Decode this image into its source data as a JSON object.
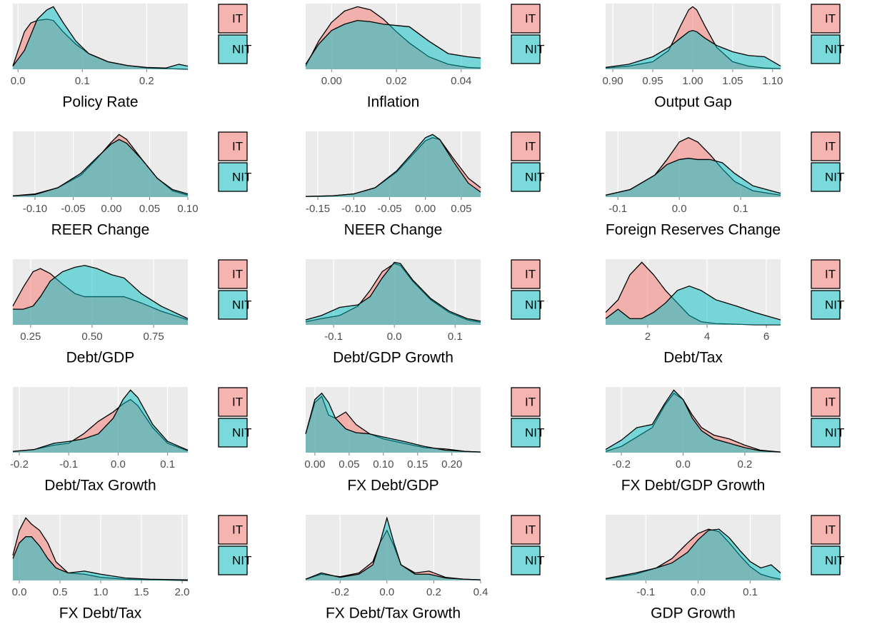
{
  "chart_data": [
    {
      "type": "area",
      "xlabel": "Policy Rate",
      "xlim": [
        -0.008,
        0.264
      ],
      "xticks": [
        {
          "value": 0,
          "label": "0.0"
        },
        0.1,
        0.2
      ],
      "ylim": [
        0,
        1.05
      ],
      "grid": true,
      "x": [
        -0.008,
        0.01,
        0.02,
        0.03,
        0.045,
        0.055,
        0.07,
        0.09,
        0.11,
        0.14,
        0.17,
        0.2,
        0.23,
        0.25,
        0.264
      ],
      "series": [
        {
          "name": "IT",
          "color": "#F8766D",
          "values": [
            0.05,
            0.6,
            0.74,
            0.78,
            0.8,
            0.78,
            0.6,
            0.4,
            0.25,
            0.12,
            0.06,
            0.02,
            0.01,
            0.005,
            0.0
          ]
        },
        {
          "name": "NIT",
          "color": "#00BFC4",
          "values": [
            0.05,
            0.3,
            0.55,
            0.8,
            0.95,
            1.0,
            0.75,
            0.45,
            0.25,
            0.12,
            0.06,
            0.03,
            0.02,
            0.08,
            0.05
          ]
        }
      ]
    },
    {
      "type": "area",
      "xlabel": "Inflation",
      "xlim": [
        -0.008,
        0.046
      ],
      "xticks": [
        {
          "value": 0,
          "label": "0.00"
        },
        0.02,
        0.04
      ],
      "ylim": [
        0,
        1.05
      ],
      "grid": true,
      "x": [
        -0.008,
        -0.004,
        0,
        0.004,
        0.008,
        0.012,
        0.016,
        0.02,
        0.024,
        0.03,
        0.036,
        0.042,
        0.046
      ],
      "series": [
        {
          "name": "IT",
          "color": "#F8766D",
          "values": [
            0.05,
            0.45,
            0.75,
            0.93,
            1.0,
            0.95,
            0.8,
            0.6,
            0.42,
            0.2,
            0.08,
            0.03,
            0.02
          ]
        },
        {
          "name": "NIT",
          "color": "#00BFC4",
          "values": [
            0.08,
            0.4,
            0.62,
            0.72,
            0.78,
            0.76,
            0.72,
            0.7,
            0.68,
            0.45,
            0.25,
            0.2,
            0.18
          ]
        }
      ]
    },
    {
      "type": "area",
      "xlabel": "Output Gap",
      "xlim": [
        0.891,
        1.11
      ],
      "xticks": [
        {
          "value": 0.9,
          "label": "0.90"
        },
        0.95,
        {
          "value": 1,
          "label": "1.00"
        },
        1.05,
        {
          "value": 1.1,
          "label": "1.10"
        }
      ],
      "ylim": [
        0,
        1.05
      ],
      "grid": true,
      "x": [
        0.891,
        0.92,
        0.95,
        0.97,
        0.985,
        0.995,
        1.0,
        1.005,
        1.015,
        1.03,
        1.05,
        1.07,
        1.09,
        1.11
      ],
      "series": [
        {
          "name": "IT",
          "color": "#F8766D",
          "values": [
            0.02,
            0.05,
            0.12,
            0.3,
            0.7,
            0.95,
            1.0,
            0.95,
            0.7,
            0.35,
            0.12,
            0.05,
            0.02,
            0.01
          ]
        },
        {
          "name": "NIT",
          "color": "#00BFC4",
          "values": [
            0.03,
            0.08,
            0.2,
            0.35,
            0.5,
            0.6,
            0.62,
            0.6,
            0.5,
            0.38,
            0.28,
            0.22,
            0.2,
            0.05
          ]
        }
      ]
    },
    {
      "type": "area",
      "xlabel": "REER Change",
      "xlim": [
        -0.129,
        0.1
      ],
      "xticks": [
        {
          "value": -0.1,
          "label": "-0.10"
        },
        -0.05,
        {
          "value": 0,
          "label": "0.00"
        },
        0.05,
        {
          "value": 0.1,
          "label": "0.10"
        }
      ],
      "ylim": [
        0,
        1.05
      ],
      "grid": true,
      "x": [
        -0.129,
        -0.1,
        -0.07,
        -0.04,
        -0.02,
        0,
        0.01,
        0.02,
        0.04,
        0.06,
        0.08,
        0.1
      ],
      "series": [
        {
          "name": "IT",
          "color": "#F8766D",
          "values": [
            0.02,
            0.05,
            0.15,
            0.35,
            0.6,
            0.88,
            1.0,
            0.92,
            0.6,
            0.3,
            0.1,
            0.03
          ]
        },
        {
          "name": "NIT",
          "color": "#00BFC4",
          "values": [
            0.02,
            0.04,
            0.15,
            0.38,
            0.62,
            0.85,
            0.92,
            0.86,
            0.6,
            0.3,
            0.12,
            0.05
          ]
        }
      ]
    },
    {
      "type": "area",
      "xlabel": "NEER Change",
      "xlim": [
        -0.167,
        0.077
      ],
      "xticks": [
        -0.15,
        {
          "value": -0.1,
          "label": "-0.10"
        },
        -0.05,
        {
          "value": 0,
          "label": "0.00"
        },
        0.05
      ],
      "ylim": [
        0,
        1.05
      ],
      "grid": true,
      "x": [
        -0.167,
        -0.13,
        -0.1,
        -0.07,
        -0.04,
        -0.02,
        0,
        0.01,
        0.02,
        0.04,
        0.06,
        0.077
      ],
      "series": [
        {
          "name": "IT",
          "color": "#F8766D",
          "values": [
            0.01,
            0.02,
            0.05,
            0.15,
            0.4,
            0.65,
            0.9,
            0.95,
            0.92,
            0.6,
            0.3,
            0.15
          ]
        },
        {
          "name": "NIT",
          "color": "#00BFC4",
          "values": [
            0.01,
            0.02,
            0.05,
            0.15,
            0.42,
            0.68,
            0.95,
            1.0,
            0.92,
            0.55,
            0.22,
            0.08
          ]
        }
      ]
    },
    {
      "type": "area",
      "xlabel": "Foreign Reserves Change",
      "xlim": [
        -0.12,
        0.165
      ],
      "xticks": [
        -0.1,
        {
          "value": 0,
          "label": "0.0"
        },
        0.1
      ],
      "ylim": [
        0,
        1.05
      ],
      "grid": true,
      "x": [
        -0.12,
        -0.08,
        -0.04,
        -0.02,
        0,
        0.015,
        0.03,
        0.05,
        0.07,
        0.09,
        0.12,
        0.165
      ],
      "series": [
        {
          "name": "IT",
          "color": "#F8766D",
          "values": [
            0.03,
            0.12,
            0.35,
            0.6,
            0.88,
            0.95,
            0.88,
            0.68,
            0.45,
            0.25,
            0.1,
            0.03
          ]
        },
        {
          "name": "NIT",
          "color": "#00BFC4",
          "values": [
            0.03,
            0.12,
            0.35,
            0.52,
            0.6,
            0.62,
            0.6,
            0.6,
            0.55,
            0.38,
            0.18,
            0.06
          ]
        }
      ]
    },
    {
      "type": "area",
      "xlabel": "Debt/GDP",
      "xlim": [
        0.178,
        0.889
      ],
      "xticks": [
        0.25,
        {
          "value": 0.5,
          "label": "0.50"
        },
        0.75
      ],
      "ylim": [
        0,
        1.05
      ],
      "grid": true,
      "x": [
        0.178,
        0.22,
        0.26,
        0.29,
        0.33,
        0.38,
        0.43,
        0.47,
        0.52,
        0.58,
        0.63,
        0.7,
        0.78,
        0.889
      ],
      "series": [
        {
          "name": "IT",
          "color": "#F8766D",
          "values": [
            0.3,
            0.6,
            0.85,
            0.9,
            0.82,
            0.65,
            0.5,
            0.45,
            0.45,
            0.45,
            0.45,
            0.35,
            0.22,
            0.08
          ]
        },
        {
          "name": "NIT",
          "color": "#00BFC4",
          "values": [
            0.25,
            0.25,
            0.3,
            0.45,
            0.7,
            0.85,
            0.92,
            0.95,
            0.9,
            0.8,
            0.75,
            0.5,
            0.3,
            0.1
          ]
        }
      ]
    },
    {
      "type": "area",
      "xlabel": "Debt/GDP Growth",
      "xlim": [
        -0.146,
        0.142
      ],
      "xticks": [
        -0.1,
        {
          "value": 0,
          "label": "0.0"
        },
        0.1
      ],
      "ylim": [
        0,
        1.05
      ],
      "grid": true,
      "x": [
        -0.146,
        -0.12,
        -0.09,
        -0.06,
        -0.04,
        -0.02,
        0,
        0.01,
        0.03,
        0.06,
        0.09,
        0.12,
        0.142
      ],
      "series": [
        {
          "name": "IT",
          "color": "#F8766D",
          "values": [
            0.05,
            0.1,
            0.15,
            0.3,
            0.55,
            0.85,
            0.98,
            0.95,
            0.7,
            0.4,
            0.2,
            0.08,
            0.04
          ]
        },
        {
          "name": "NIT",
          "color": "#00BFC4",
          "values": [
            0.08,
            0.15,
            0.28,
            0.32,
            0.45,
            0.75,
            1.0,
            0.98,
            0.72,
            0.42,
            0.22,
            0.1,
            0.06
          ]
        }
      ]
    },
    {
      "type": "area",
      "xlabel": "Debt/Tax",
      "xlim": [
        0.58,
        6.48
      ],
      "xticks": [
        2,
        4,
        6
      ],
      "ylim": [
        0,
        1.05
      ],
      "grid": true,
      "x": [
        0.58,
        1.0,
        1.4,
        1.8,
        2.2,
        2.6,
        3.0,
        3.4,
        3.8,
        4.3,
        5.0,
        5.6,
        6.48
      ],
      "series": [
        {
          "name": "IT",
          "color": "#F8766D",
          "values": [
            0.2,
            0.4,
            0.8,
            1.0,
            0.8,
            0.55,
            0.35,
            0.15,
            0.05,
            0.02,
            0.01,
            0,
            0
          ]
        },
        {
          "name": "NIT",
          "color": "#00BFC4",
          "values": [
            0.1,
            0.25,
            0.1,
            0.1,
            0.2,
            0.35,
            0.55,
            0.62,
            0.55,
            0.4,
            0.3,
            0.2,
            0.08
          ]
        }
      ]
    },
    {
      "type": "area",
      "xlabel": "Debt/Tax Growth",
      "xlim": [
        -0.213,
        0.141
      ],
      "xticks": [
        -0.2,
        -0.1,
        {
          "value": 0,
          "label": "0.0"
        },
        0.1
      ],
      "ylim": [
        0,
        1.05
      ],
      "grid": true,
      "x": [
        -0.213,
        -0.17,
        -0.13,
        -0.1,
        -0.07,
        -0.04,
        -0.01,
        0.01,
        0.025,
        0.04,
        0.07,
        0.1,
        0.141
      ],
      "series": [
        {
          "name": "IT",
          "color": "#F8766D",
          "values": [
            0.02,
            0.05,
            0.12,
            0.15,
            0.3,
            0.5,
            0.65,
            0.78,
            0.85,
            0.75,
            0.4,
            0.15,
            0.03
          ]
        },
        {
          "name": "NIT",
          "color": "#00BFC4",
          "values": [
            0.02,
            0.05,
            0.15,
            0.18,
            0.22,
            0.3,
            0.55,
            0.85,
            1.0,
            0.88,
            0.45,
            0.18,
            0.04
          ]
        }
      ]
    },
    {
      "type": "area",
      "xlabel": "FX Debt/GDP",
      "xlim": [
        -0.0135,
        0.242
      ],
      "xticks": [
        {
          "value": 0,
          "label": "0.00"
        },
        0.05,
        {
          "value": 0.1,
          "label": "0.10"
        },
        0.15,
        {
          "value": 0.2,
          "label": "0.20"
        }
      ],
      "ylim": [
        0,
        1.05
      ],
      "grid": true,
      "x": [
        -0.0135,
        0,
        0.01,
        0.02,
        0.03,
        0.045,
        0.06,
        0.08,
        0.1,
        0.13,
        0.16,
        0.19,
        0.22,
        0.242
      ],
      "series": [
        {
          "name": "IT",
          "color": "#F8766D",
          "values": [
            0.3,
            0.8,
            0.9,
            0.6,
            0.55,
            0.65,
            0.45,
            0.3,
            0.22,
            0.15,
            0.08,
            0.06,
            0.02,
            0.01
          ]
        },
        {
          "name": "NIT",
          "color": "#00BFC4",
          "values": [
            0.3,
            0.85,
            0.95,
            0.8,
            0.55,
            0.38,
            0.32,
            0.3,
            0.25,
            0.18,
            0.1,
            0.04,
            0.02,
            0.01
          ]
        }
      ]
    },
    {
      "type": "area",
      "xlabel": "FX Debt/GDP Growth",
      "xlim": [
        -0.251,
        0.316
      ],
      "xticks": [
        -0.2,
        {
          "value": 0,
          "label": "0.0"
        },
        0.2
      ],
      "ylim": [
        0,
        1.05
      ],
      "grid": true,
      "x": [
        -0.251,
        -0.2,
        -0.15,
        -0.1,
        -0.06,
        -0.03,
        0,
        0.03,
        0.06,
        0.1,
        0.15,
        0.2,
        0.25,
        0.316
      ],
      "series": [
        {
          "name": "IT",
          "color": "#F8766D",
          "values": [
            0.02,
            0.1,
            0.25,
            0.4,
            0.75,
            0.95,
            0.85,
            0.6,
            0.4,
            0.28,
            0.22,
            0.12,
            0.04,
            0.01
          ]
        },
        {
          "name": "NIT",
          "color": "#00BFC4",
          "values": [
            0.05,
            0.2,
            0.4,
            0.45,
            0.78,
            1.0,
            0.85,
            0.55,
            0.35,
            0.22,
            0.15,
            0.08,
            0.03,
            0.01
          ]
        }
      ]
    },
    {
      "type": "area",
      "xlabel": "FX Debt/Tax",
      "xlim": [
        -0.079,
        2.07
      ],
      "xticks": [
        {
          "value": 0,
          "label": "0.0"
        },
        0.5,
        {
          "value": 1,
          "label": "1.0"
        },
        1.5,
        {
          "value": 2,
          "label": "2.0"
        }
      ],
      "ylim": [
        0,
        1.05
      ],
      "grid": true,
      "x": [
        -0.079,
        0,
        0.08,
        0.15,
        0.25,
        0.35,
        0.45,
        0.6,
        0.8,
        1.0,
        1.3,
        1.6,
        2.07
      ],
      "series": [
        {
          "name": "IT",
          "color": "#F8766D",
          "values": [
            0.4,
            0.8,
            1.0,
            0.9,
            0.8,
            0.6,
            0.3,
            0.12,
            0.1,
            0.05,
            0.02,
            0.01,
            0
          ]
        },
        {
          "name": "NIT",
          "color": "#00BFC4",
          "values": [
            0.35,
            0.6,
            0.7,
            0.7,
            0.55,
            0.35,
            0.2,
            0.12,
            0.15,
            0.1,
            0.04,
            0.02,
            0.01
          ]
        }
      ]
    },
    {
      "type": "area",
      "xlabel": "FX Debt/Tax Growth",
      "xlim": [
        -0.347,
        0.4
      ],
      "xticks": [
        -0.2,
        {
          "value": 0,
          "label": "0.0"
        },
        0.2,
        0.4
      ],
      "ylim": [
        0,
        1.05
      ],
      "grid": true,
      "x": [
        -0.347,
        -0.28,
        -0.2,
        -0.12,
        -0.06,
        -0.03,
        0,
        0.03,
        0.06,
        0.12,
        0.18,
        0.25,
        0.33,
        0.4
      ],
      "series": [
        {
          "name": "IT",
          "color": "#F8766D",
          "values": [
            0.02,
            0.1,
            0.06,
            0.12,
            0.3,
            0.6,
            0.8,
            0.55,
            0.25,
            0.12,
            0.15,
            0.05,
            0.02,
            0.01
          ]
        },
        {
          "name": "NIT",
          "color": "#00BFC4",
          "values": [
            0.02,
            0.12,
            0.05,
            0.1,
            0.25,
            0.6,
            1.0,
            0.6,
            0.25,
            0.1,
            0.1,
            0.04,
            0.02,
            0.01
          ]
        }
      ]
    },
    {
      "type": "area",
      "xlabel": "GDP Growth",
      "xlim": [
        -0.177,
        0.158
      ],
      "xticks": [
        -0.1,
        {
          "value": 0,
          "label": "0.0"
        },
        0.1
      ],
      "ylim": [
        0,
        1.05
      ],
      "grid": true,
      "x": [
        -0.177,
        -0.12,
        -0.08,
        -0.05,
        -0.02,
        0,
        0.02,
        0.04,
        0.06,
        0.08,
        0.1,
        0.12,
        0.14,
        0.158
      ],
      "series": [
        {
          "name": "IT",
          "color": "#F8766D",
          "values": [
            0.02,
            0.1,
            0.2,
            0.35,
            0.6,
            0.75,
            0.82,
            0.78,
            0.6,
            0.4,
            0.22,
            0.1,
            0.05,
            0.02
          ]
        },
        {
          "name": "NIT",
          "color": "#00BFC4",
          "values": [
            0.03,
            0.12,
            0.2,
            0.28,
            0.45,
            0.65,
            0.8,
            0.82,
            0.68,
            0.48,
            0.3,
            0.2,
            0.25,
            0.12
          ]
        }
      ]
    }
  ]
}
